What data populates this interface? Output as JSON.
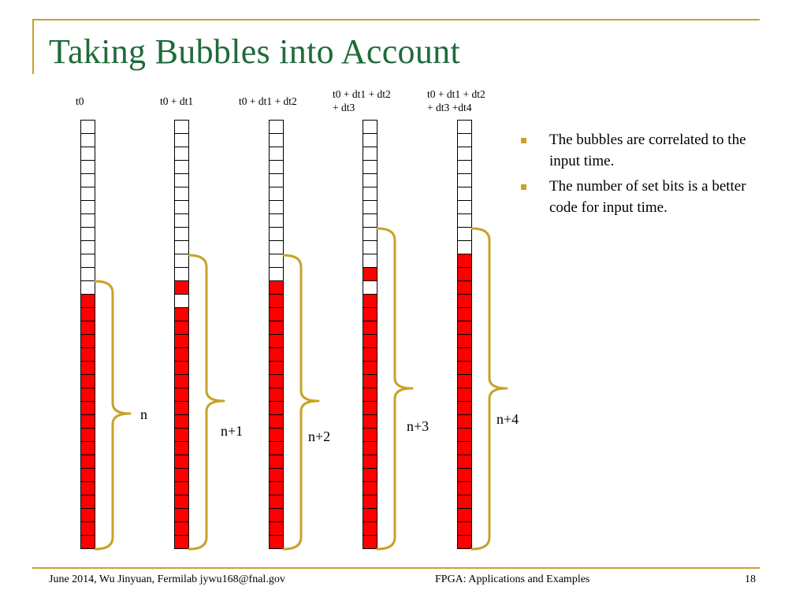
{
  "slide": {
    "title": "Taking Bubbles into Account",
    "accent_color": "#c9a227",
    "title_color": "#1f6b3a",
    "set_bit_color": "#ff0000"
  },
  "columns": [
    {
      "label": "t0",
      "bits": "00000000000001111111111111111111",
      "count_label": "n"
    },
    {
      "label": "t0 + dt1",
      "bits": "00000000000010111111111111111111",
      "count_label": "n+1"
    },
    {
      "label": "t0 + dt1 + dt2",
      "bits": "00000000000011111111111111111111",
      "count_label": "n+2"
    },
    {
      "label": "t0 + dt1 + dt2\n+ dt3",
      "bits": "00000000000101111111111111111111",
      "count_label": "n+3"
    },
    {
      "label": "t0 + dt1 + dt2\n+ dt3 +dt4",
      "bits": "00000000001111111111111111111111",
      "count_label": "n+4"
    }
  ],
  "bullets": [
    {
      "icon": "square-bullet-icon",
      "text": "The bubbles are correlated to the input time."
    },
    {
      "icon": "square-bullet-icon",
      "text": "The number of set bits is a better code for input time."
    }
  ],
  "footer": {
    "left": "June 2014, Wu Jinyuan, Fermilab jywu168@fnal.gov",
    "center": "FPGA: Applications and Examples",
    "page": "18"
  }
}
